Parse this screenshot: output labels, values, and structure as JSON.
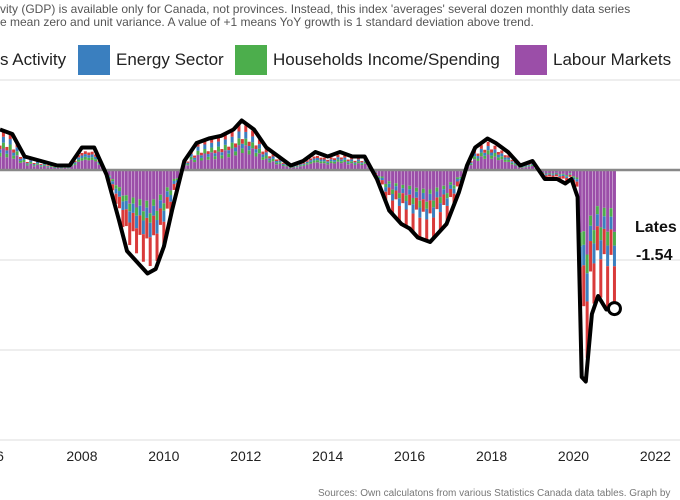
{
  "note": {
    "line1": "vity (GDP) is available only for Canada, not provinces. Instead, this index 'averages' several dozen monthly data series",
    "line2": "e mean zero and unit variance. A value of +1 means YoY growth is 1 standard deviation above trend."
  },
  "legend": [
    {
      "label": "s Activity",
      "color": null
    },
    {
      "label": "Energy Sector",
      "color": "#3a7fbf"
    },
    {
      "label": "Households Income/Spending",
      "color": "#4cae4c"
    },
    {
      "label": "Labour Markets",
      "color": "#9b4ea8"
    }
  ],
  "annotation": {
    "label": "Lates",
    "value": "-1.54"
  },
  "source": "Sources: Own calculatons from various Statistics Canada data tables. Graph by",
  "chart_data": {
    "type": "bar",
    "xlim": [
      2006.0,
      2022.6
    ],
    "ylim": [
      -3.0,
      1.0
    ],
    "x_ticks": [
      "6",
      "2008",
      "2010",
      "2012",
      "2014",
      "2016",
      "2018",
      "2020",
      "2022"
    ],
    "x_tick_values": [
      2006,
      2008,
      2010,
      2012,
      2014,
      2016,
      2018,
      2020,
      2022
    ],
    "y_gridlines": [
      1,
      0,
      -1,
      -2,
      -3
    ],
    "series_colors": {
      "business": "#d93a3a",
      "energy": "#3a7fbf",
      "households": "#4cae4c",
      "labour": "#9b4ea8",
      "index": "#000000"
    },
    "index_line": {
      "x": [
        2006.0,
        2006.3,
        2006.6,
        2007.0,
        2007.4,
        2007.7,
        2008.0,
        2008.3,
        2008.6,
        2008.9,
        2009.1,
        2009.4,
        2009.6,
        2009.8,
        2010.0,
        2010.2,
        2010.5,
        2010.8,
        2011.1,
        2011.4,
        2011.7,
        2011.9,
        2012.2,
        2012.5,
        2012.8,
        2013.1,
        2013.4,
        2013.7,
        2014.0,
        2014.3,
        2014.6,
        2014.9,
        2015.2,
        2015.5,
        2015.8,
        2016.0,
        2016.2,
        2016.5,
        2016.7,
        2016.9,
        2017.2,
        2017.4,
        2017.6,
        2017.9,
        2018.1,
        2018.4,
        2018.7,
        2019.0,
        2019.3,
        2019.6,
        2019.8,
        2019.95,
        2020.1,
        2020.2,
        2020.3,
        2020.45,
        2020.6,
        2020.8,
        2021.0
      ],
      "y": [
        0.45,
        0.4,
        0.15,
        0.1,
        0.05,
        0.05,
        0.25,
        0.25,
        -0.05,
        -0.55,
        -0.9,
        -1.05,
        -1.15,
        -1.1,
        -0.85,
        -0.45,
        0.1,
        0.3,
        0.35,
        0.38,
        0.45,
        0.55,
        0.45,
        0.25,
        0.15,
        0.05,
        0.1,
        0.2,
        0.15,
        0.2,
        0.15,
        0.15,
        -0.1,
        -0.45,
        -0.6,
        -0.65,
        -0.75,
        -0.8,
        -0.7,
        -0.6,
        -0.25,
        0.05,
        0.25,
        0.35,
        0.3,
        0.2,
        0.05,
        0.1,
        -0.1,
        -0.1,
        -0.15,
        -0.1,
        -0.3,
        -2.3,
        -2.35,
        -1.6,
        -1.4,
        -1.55,
        -1.54
      ]
    },
    "latest": {
      "x": 2021.0,
      "y": -1.54
    }
  }
}
